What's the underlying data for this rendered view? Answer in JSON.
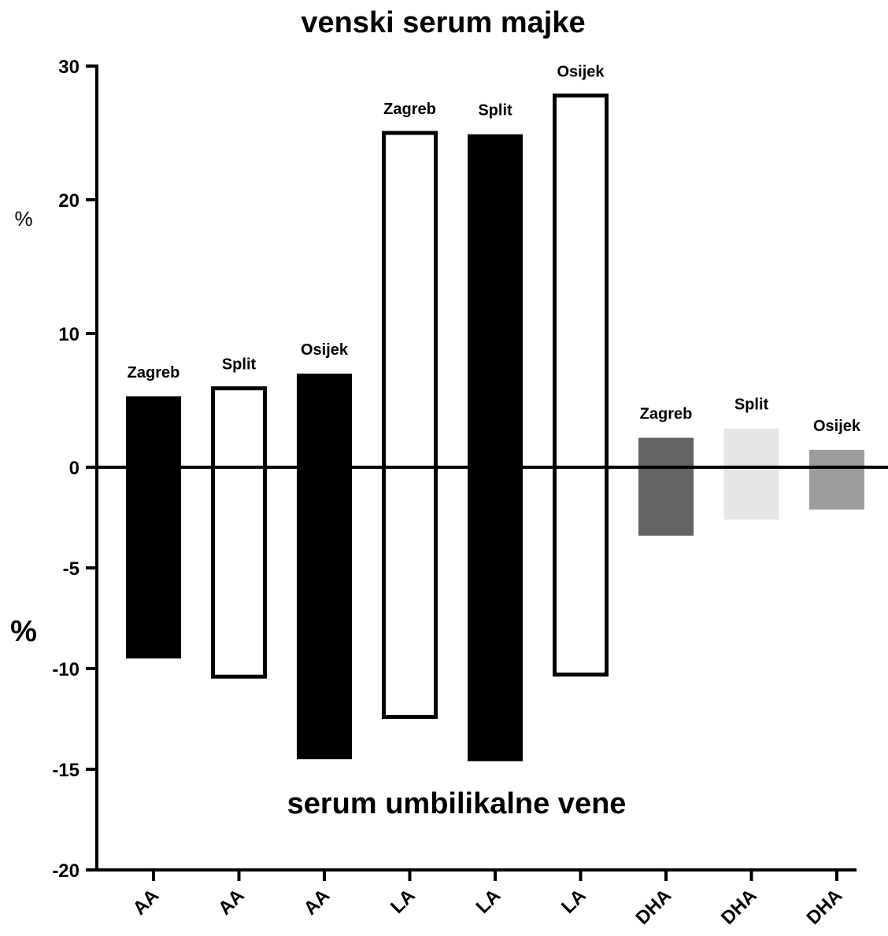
{
  "chart_data": {
    "type": "bar",
    "title": "venski serum majke",
    "subtitle": "serum umbilikalne vene",
    "ylabel_top": "%",
    "ylabel_bottom": "%",
    "categories": [
      "AA",
      "AA",
      "AA",
      "LA",
      "LA",
      "LA",
      "DHA",
      "DHA",
      "DHA"
    ],
    "cities": [
      "Zagreb",
      "Split",
      "Osijek",
      "Zagreb",
      "Split",
      "Osijek",
      "Zagreb",
      "Split",
      "Osijek"
    ],
    "series": [
      {
        "values": [
          5.3,
          5.9,
          7.0,
          25.0,
          24.9,
          27.8,
          2.2,
          2.9,
          1.3
        ]
      },
      {
        "values": [
          -9.5,
          -10.4,
          -14.5,
          -12.4,
          -14.6,
          -10.3,
          -3.4,
          -2.6,
          -2.1
        ]
      }
    ],
    "fills": [
      "#000000",
      "#ffffff",
      "#000000",
      "#ffffff",
      "#000000",
      "#ffffff",
      "#636363",
      "#e6e6e6",
      "#9d9d9f"
    ],
    "outlined": [
      false,
      true,
      false,
      true,
      false,
      true,
      false,
      false,
      false
    ],
    "upper_axis": {
      "ylim": [
        0,
        30
      ],
      "ticks": [
        "0",
        "10",
        "20",
        "30"
      ]
    },
    "lower_axis": {
      "ylim": [
        -20,
        0
      ],
      "ticks": [
        "-5",
        "-10",
        "-15",
        "-20"
      ]
    },
    "grid": false,
    "legend": "none"
  }
}
